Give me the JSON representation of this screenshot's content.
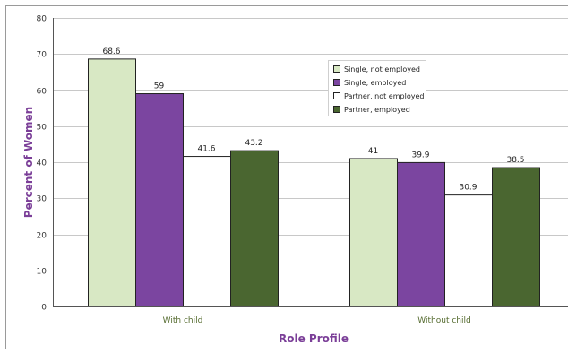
{
  "chart_data": {
    "type": "bar",
    "categories": [
      "With child",
      "Without child"
    ],
    "series": [
      {
        "name": "Single, not employed",
        "values": [
          68.6,
          41
        ],
        "labels": [
          "68.6",
          "41"
        ],
        "color": "#d8e8c4"
      },
      {
        "name": "Single, employed",
        "values": [
          59,
          39.9
        ],
        "labels": [
          "59",
          "39.9"
        ],
        "color": "#7b45a0"
      },
      {
        "name": "Partner, not employed",
        "values": [
          41.6,
          30.9
        ],
        "labels": [
          "41.6",
          "30.9"
        ],
        "color": "#ffffff"
      },
      {
        "name": "Partner, employed",
        "values": [
          43.2,
          38.5
        ],
        "labels": [
          "43.2",
          "38.5"
        ],
        "color": "#4a6630"
      }
    ],
    "xlabel": "Role Profile",
    "ylabel": "Percent of Women",
    "ylim": [
      0,
      80
    ],
    "yticks": [
      "0",
      "10",
      "20",
      "30",
      "40",
      "50",
      "60",
      "70",
      "80"
    ],
    "grid": true,
    "legend_position": "top-right"
  }
}
